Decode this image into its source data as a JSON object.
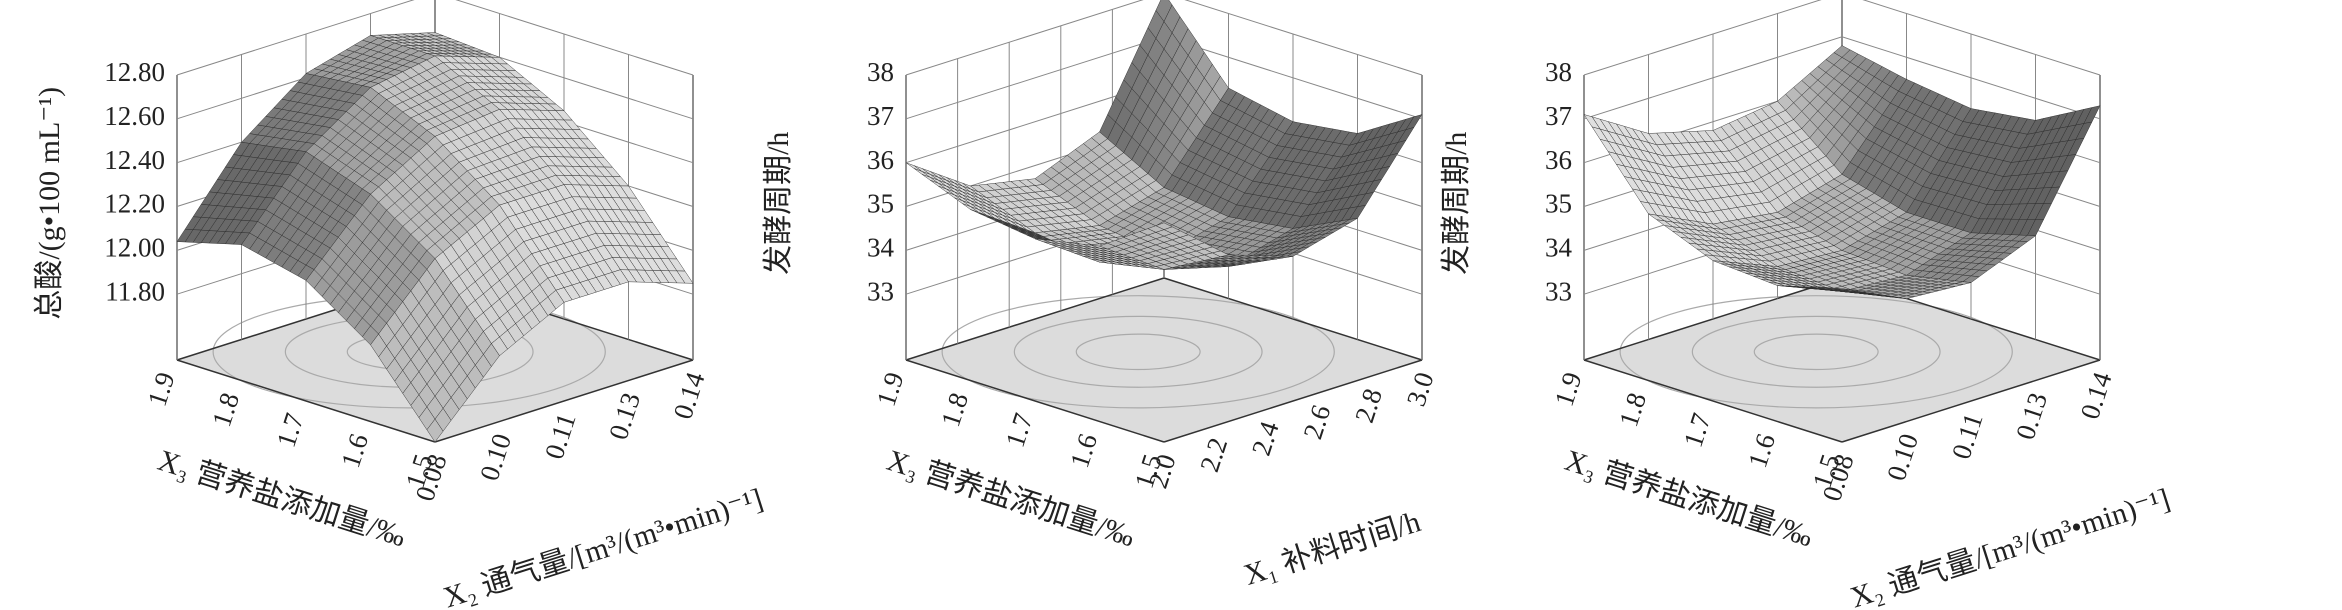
{
  "chart_data": [
    {
      "type": "surface",
      "zlabel": "总酸/(g•100 mL⁻¹)",
      "ylabel": "X₃ 营养盐添加量/‰",
      "xlabel": "X₂ 通气量/[m³/(m³•min)⁻¹]",
      "x": [
        0.08,
        0.095,
        0.11,
        0.125,
        0.14
      ],
      "y": [
        1.5,
        1.6,
        1.7,
        1.8,
        1.9
      ],
      "z": [
        [
          11.5,
          11.8,
          11.95,
          11.95,
          11.85
        ],
        [
          11.85,
          12.15,
          12.3,
          12.3,
          12.2
        ],
        [
          12.05,
          12.35,
          12.52,
          12.55,
          12.45
        ],
        [
          12.12,
          12.45,
          12.65,
          12.7,
          12.6
        ],
        [
          12.04,
          12.4,
          12.62,
          12.7,
          12.62
        ]
      ],
      "xlim": [
        0.08,
        0.14
      ],
      "xticks": [
        {
          "value": 0.08,
          "label": "0.08"
        },
        {
          "value": 0.095,
          "label": "0.10"
        },
        {
          "value": 0.11,
          "label": "0.11"
        },
        {
          "value": 0.125,
          "label": "0.13"
        },
        {
          "value": 0.14,
          "label": "0.14"
        }
      ],
      "ylim": [
        1.5,
        1.9
      ],
      "yticks": [
        1.5,
        1.6,
        1.7,
        1.8,
        1.9
      ],
      "zlim": [
        11.5,
        12.8
      ],
      "zticks": [
        {
          "value": 11.8,
          "label": "11.80"
        },
        {
          "value": 12.0,
          "label": "12.00"
        },
        {
          "value": 12.2,
          "label": "12.20"
        },
        {
          "value": 12.4,
          "label": "12.40"
        },
        {
          "value": 12.6,
          "label": "12.60"
        },
        {
          "value": 12.8,
          "label": "12.80"
        }
      ]
    },
    {
      "type": "surface",
      "zlabel": "发酵周期/h",
      "ylabel": "X₃ 营养盐添加量/‰",
      "xlabel": "X₁ 补料时间/h",
      "x": [
        2.0,
        2.25,
        2.5,
        2.75,
        3.0
      ],
      "y": [
        1.5,
        1.6,
        1.7,
        1.8,
        1.9
      ],
      "z": [
        [
          36.5,
          35.3,
          34.8,
          35.2,
          37.1
        ],
        [
          35.5,
          34.5,
          34.1,
          34.5,
          36.2
        ],
        [
          35.2,
          34.2,
          33.9,
          34.3,
          36.0
        ],
        [
          35.4,
          34.4,
          34.1,
          34.5,
          36.3
        ],
        [
          36.0,
          35.0,
          34.7,
          35.3,
          38.0
        ]
      ],
      "xlim": [
        2.0,
        3.0
      ],
      "xticks": [
        {
          "value": 2.0,
          "label": "2.0"
        },
        2.2,
        2.4,
        2.6,
        2.8,
        {
          "value": 3.0,
          "label": "3.0"
        }
      ],
      "ylim": [
        1.5,
        1.9
      ],
      "yticks": [
        1.5,
        1.6,
        1.7,
        1.8,
        1.9
      ],
      "zlim": [
        31.5,
        38
      ],
      "zticks": [
        33,
        34,
        35,
        36,
        37,
        38
      ]
    },
    {
      "type": "surface",
      "zlabel": "发酵周期/h",
      "ylabel": "X₃ 营养盐添加量/‰",
      "xlabel": "X₂ 通气量/[m³/(m³•min)⁻¹]",
      "x": [
        0.08,
        0.095,
        0.11,
        0.125,
        0.14
      ],
      "y": [
        1.5,
        1.6,
        1.7,
        1.8,
        1.9
      ],
      "z": [
        [
          35.0,
          34.3,
          34.2,
          34.8,
          37.3
        ],
        [
          34.6,
          34.0,
          33.9,
          34.4,
          36.5
        ],
        [
          34.7,
          34.1,
          34.0,
          34.4,
          36.3
        ],
        [
          35.3,
          34.6,
          34.4,
          34.8,
          36.5
        ],
        [
          37.1,
          36.2,
          35.8,
          36.0,
          36.8
        ]
      ],
      "xlim": [
        0.08,
        0.14
      ],
      "xticks": [
        {
          "value": 0.08,
          "label": "0.08"
        },
        {
          "value": 0.095,
          "label": "0.10"
        },
        {
          "value": 0.11,
          "label": "0.11"
        },
        {
          "value": 0.125,
          "label": "0.13"
        },
        {
          "value": 0.14,
          "label": "0.14"
        }
      ],
      "ylim": [
        1.5,
        1.9
      ],
      "yticks": [
        1.5,
        1.6,
        1.7,
        1.8,
        1.9
      ],
      "zlim": [
        31.5,
        38
      ],
      "zticks": [
        33,
        34,
        35,
        36,
        37,
        38
      ]
    }
  ]
}
